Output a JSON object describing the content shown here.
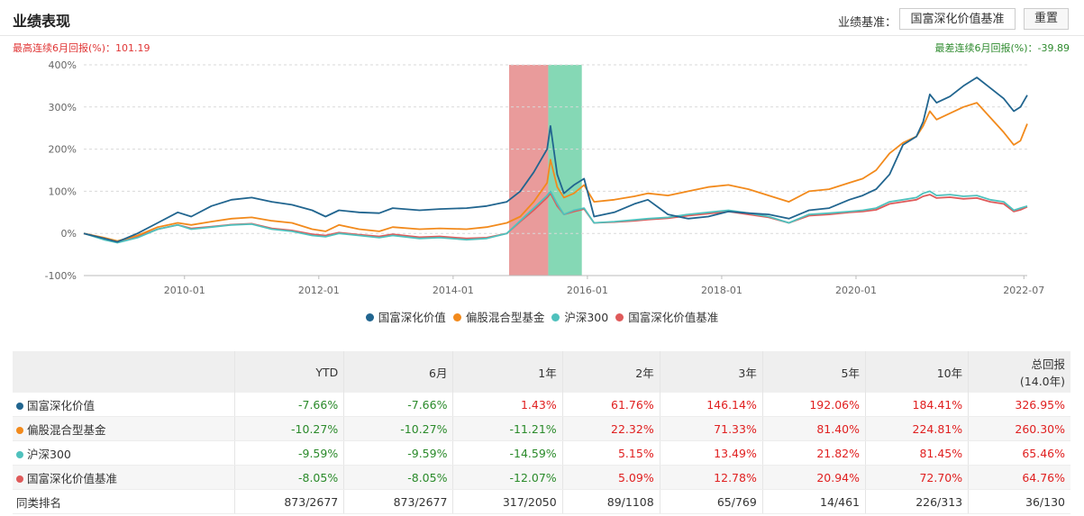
{
  "header": {
    "title": "业绩表现",
    "benchmark_label": "业绩基准：",
    "benchmark_value": "国富深化价值基准",
    "reset_label": "重置"
  },
  "stats": {
    "best": "最高连续6月回报(%)：101.19",
    "worst": "最差连续6月回报(%)：-39.89"
  },
  "chart_data": {
    "type": "line",
    "x_labels": [
      "2010-01",
      "2012-01",
      "2014-01",
      "2016-01",
      "2018-01",
      "2020-01",
      "2022-07"
    ],
    "x_range": [
      "2008-07",
      "2022-07"
    ],
    "y_labels": [
      "400%",
      "300%",
      "200%",
      "100%",
      "0%",
      "-100%"
    ],
    "ylim": [
      -100,
      400
    ],
    "grid": true,
    "legend_position": "bottom",
    "highlights": [
      {
        "from": "2014-11",
        "to": "2015-06",
        "color": "#e27a7a"
      },
      {
        "from": "2015-06",
        "to": "2015-12",
        "color": "#5ccb9c"
      }
    ],
    "series": [
      {
        "name": "国富深化价值",
        "color": "#21658f",
        "points": [
          [
            2008.5,
            0
          ],
          [
            2008.8,
            -12
          ],
          [
            2009.0,
            -20
          ],
          [
            2009.3,
            0
          ],
          [
            2009.6,
            25
          ],
          [
            2009.9,
            50
          ],
          [
            2010.1,
            40
          ],
          [
            2010.4,
            65
          ],
          [
            2010.7,
            80
          ],
          [
            2011.0,
            85
          ],
          [
            2011.3,
            75
          ],
          [
            2011.6,
            68
          ],
          [
            2011.9,
            55
          ],
          [
            2012.1,
            40
          ],
          [
            2012.3,
            55
          ],
          [
            2012.6,
            50
          ],
          [
            2012.9,
            48
          ],
          [
            2013.1,
            60
          ],
          [
            2013.5,
            55
          ],
          [
            2013.8,
            58
          ],
          [
            2014.2,
            60
          ],
          [
            2014.5,
            65
          ],
          [
            2014.8,
            75
          ],
          [
            2015.0,
            100
          ],
          [
            2015.2,
            145
          ],
          [
            2015.4,
            200
          ],
          [
            2015.45,
            255
          ],
          [
            2015.55,
            140
          ],
          [
            2015.65,
            95
          ],
          [
            2015.8,
            115
          ],
          [
            2015.95,
            130
          ],
          [
            2016.1,
            40
          ],
          [
            2016.4,
            50
          ],
          [
            2016.7,
            70
          ],
          [
            2016.9,
            80
          ],
          [
            2017.2,
            45
          ],
          [
            2017.5,
            35
          ],
          [
            2017.8,
            40
          ],
          [
            2018.1,
            52
          ],
          [
            2018.4,
            48
          ],
          [
            2018.7,
            45
          ],
          [
            2019.0,
            35
          ],
          [
            2019.3,
            55
          ],
          [
            2019.6,
            60
          ],
          [
            2019.9,
            80
          ],
          [
            2020.1,
            90
          ],
          [
            2020.3,
            105
          ],
          [
            2020.5,
            140
          ],
          [
            2020.7,
            210
          ],
          [
            2020.9,
            230
          ],
          [
            2021.0,
            265
          ],
          [
            2021.1,
            330
          ],
          [
            2021.2,
            310
          ],
          [
            2021.4,
            325
          ],
          [
            2021.6,
            350
          ],
          [
            2021.8,
            370
          ],
          [
            2022.0,
            345
          ],
          [
            2022.2,
            320
          ],
          [
            2022.35,
            290
          ],
          [
            2022.45,
            300
          ],
          [
            2022.55,
            328
          ]
        ]
      },
      {
        "name": "偏股混合型基金",
        "color": "#f28a1c",
        "points": [
          [
            2008.5,
            0
          ],
          [
            2008.8,
            -10
          ],
          [
            2009.0,
            -18
          ],
          [
            2009.3,
            -5
          ],
          [
            2009.6,
            15
          ],
          [
            2009.9,
            25
          ],
          [
            2010.1,
            20
          ],
          [
            2010.4,
            28
          ],
          [
            2010.7,
            35
          ],
          [
            2011.0,
            38
          ],
          [
            2011.3,
            30
          ],
          [
            2011.6,
            25
          ],
          [
            2011.9,
            10
          ],
          [
            2012.1,
            5
          ],
          [
            2012.3,
            20
          ],
          [
            2012.6,
            10
          ],
          [
            2012.9,
            5
          ],
          [
            2013.1,
            15
          ],
          [
            2013.5,
            10
          ],
          [
            2013.8,
            12
          ],
          [
            2014.2,
            10
          ],
          [
            2014.5,
            15
          ],
          [
            2014.8,
            25
          ],
          [
            2015.0,
            40
          ],
          [
            2015.2,
            75
          ],
          [
            2015.4,
            120
          ],
          [
            2015.45,
            175
          ],
          [
            2015.55,
            110
          ],
          [
            2015.65,
            85
          ],
          [
            2015.8,
            95
          ],
          [
            2015.95,
            115
          ],
          [
            2016.1,
            75
          ],
          [
            2016.4,
            80
          ],
          [
            2016.7,
            88
          ],
          [
            2016.9,
            95
          ],
          [
            2017.2,
            90
          ],
          [
            2017.5,
            100
          ],
          [
            2017.8,
            110
          ],
          [
            2018.1,
            115
          ],
          [
            2018.4,
            105
          ],
          [
            2018.7,
            90
          ],
          [
            2019.0,
            75
          ],
          [
            2019.3,
            100
          ],
          [
            2019.6,
            105
          ],
          [
            2019.9,
            120
          ],
          [
            2020.1,
            130
          ],
          [
            2020.3,
            150
          ],
          [
            2020.5,
            190
          ],
          [
            2020.7,
            215
          ],
          [
            2020.9,
            230
          ],
          [
            2021.0,
            255
          ],
          [
            2021.1,
            290
          ],
          [
            2021.2,
            270
          ],
          [
            2021.4,
            285
          ],
          [
            2021.6,
            300
          ],
          [
            2021.8,
            310
          ],
          [
            2022.0,
            275
          ],
          [
            2022.2,
            240
          ],
          [
            2022.35,
            210
          ],
          [
            2022.45,
            220
          ],
          [
            2022.55,
            260
          ]
        ]
      },
      {
        "name": "沪深300",
        "color": "#4fc1bd",
        "points": [
          [
            2008.5,
            0
          ],
          [
            2008.8,
            -15
          ],
          [
            2009.0,
            -22
          ],
          [
            2009.3,
            -10
          ],
          [
            2009.6,
            10
          ],
          [
            2009.9,
            20
          ],
          [
            2010.1,
            10
          ],
          [
            2010.4,
            15
          ],
          [
            2010.7,
            20
          ],
          [
            2011.0,
            22
          ],
          [
            2011.3,
            10
          ],
          [
            2011.6,
            5
          ],
          [
            2011.9,
            -5
          ],
          [
            2012.1,
            -8
          ],
          [
            2012.3,
            0
          ],
          [
            2012.6,
            -5
          ],
          [
            2012.9,
            -10
          ],
          [
            2013.1,
            -5
          ],
          [
            2013.5,
            -12
          ],
          [
            2013.8,
            -10
          ],
          [
            2014.2,
            -15
          ],
          [
            2014.5,
            -12
          ],
          [
            2014.8,
            0
          ],
          [
            2015.0,
            30
          ],
          [
            2015.2,
            60
          ],
          [
            2015.4,
            90
          ],
          [
            2015.45,
            100
          ],
          [
            2015.55,
            70
          ],
          [
            2015.65,
            45
          ],
          [
            2015.8,
            55
          ],
          [
            2015.95,
            60
          ],
          [
            2016.1,
            25
          ],
          [
            2016.4,
            28
          ],
          [
            2016.7,
            32
          ],
          [
            2016.9,
            35
          ],
          [
            2017.2,
            38
          ],
          [
            2017.5,
            45
          ],
          [
            2017.8,
            50
          ],
          [
            2018.1,
            55
          ],
          [
            2018.4,
            48
          ],
          [
            2018.7,
            40
          ],
          [
            2019.0,
            25
          ],
          [
            2019.3,
            45
          ],
          [
            2019.6,
            48
          ],
          [
            2019.9,
            52
          ],
          [
            2020.1,
            55
          ],
          [
            2020.3,
            60
          ],
          [
            2020.5,
            75
          ],
          [
            2020.7,
            80
          ],
          [
            2020.9,
            85
          ],
          [
            2021.0,
            95
          ],
          [
            2021.1,
            100
          ],
          [
            2021.2,
            90
          ],
          [
            2021.4,
            92
          ],
          [
            2021.6,
            88
          ],
          [
            2021.8,
            90
          ],
          [
            2022.0,
            80
          ],
          [
            2022.2,
            75
          ],
          [
            2022.35,
            55
          ],
          [
            2022.45,
            60
          ],
          [
            2022.55,
            65
          ]
        ]
      },
      {
        "name": "国富深化价值基准",
        "color": "#df5a5a",
        "points": [
          [
            2008.5,
            0
          ],
          [
            2008.8,
            -13
          ],
          [
            2009.0,
            -19
          ],
          [
            2009.3,
            -8
          ],
          [
            2009.6,
            10
          ],
          [
            2009.9,
            20
          ],
          [
            2010.1,
            12
          ],
          [
            2010.4,
            16
          ],
          [
            2010.7,
            21
          ],
          [
            2011.0,
            23
          ],
          [
            2011.3,
            12
          ],
          [
            2011.6,
            7
          ],
          [
            2011.9,
            -2
          ],
          [
            2012.1,
            -5
          ],
          [
            2012.3,
            2
          ],
          [
            2012.6,
            -3
          ],
          [
            2012.9,
            -7
          ],
          [
            2013.1,
            -2
          ],
          [
            2013.5,
            -9
          ],
          [
            2013.8,
            -7
          ],
          [
            2014.2,
            -12
          ],
          [
            2014.5,
            -10
          ],
          [
            2014.8,
            0
          ],
          [
            2015.0,
            28
          ],
          [
            2015.2,
            55
          ],
          [
            2015.4,
            85
          ],
          [
            2015.45,
            95
          ],
          [
            2015.55,
            65
          ],
          [
            2015.65,
            45
          ],
          [
            2015.8,
            52
          ],
          [
            2015.95,
            58
          ],
          [
            2016.1,
            25
          ],
          [
            2016.4,
            27
          ],
          [
            2016.7,
            30
          ],
          [
            2016.9,
            33
          ],
          [
            2017.2,
            36
          ],
          [
            2017.5,
            42
          ],
          [
            2017.8,
            47
          ],
          [
            2018.1,
            52
          ],
          [
            2018.4,
            45
          ],
          [
            2018.7,
            38
          ],
          [
            2019.0,
            25
          ],
          [
            2019.3,
            42
          ],
          [
            2019.6,
            45
          ],
          [
            2019.9,
            50
          ],
          [
            2020.1,
            52
          ],
          [
            2020.3,
            56
          ],
          [
            2020.5,
            70
          ],
          [
            2020.7,
            75
          ],
          [
            2020.9,
            80
          ],
          [
            2021.0,
            88
          ],
          [
            2021.1,
            92
          ],
          [
            2021.2,
            84
          ],
          [
            2021.4,
            86
          ],
          [
            2021.6,
            82
          ],
          [
            2021.8,
            84
          ],
          [
            2022.0,
            75
          ],
          [
            2022.2,
            70
          ],
          [
            2022.35,
            52
          ],
          [
            2022.45,
            56
          ],
          [
            2022.55,
            63
          ]
        ]
      }
    ]
  },
  "table": {
    "headers": [
      "YTD",
      "6月",
      "1年",
      "2年",
      "3年",
      "5年",
      "10年",
      "总回报",
      "(14.0年)"
    ],
    "rows": [
      {
        "name": "国富深化价值",
        "color": "#21658f",
        "values": [
          "-7.66%",
          "-7.66%",
          "1.43%",
          "61.76%",
          "146.14%",
          "192.06%",
          "184.41%",
          "326.95%"
        ]
      },
      {
        "name": "偏股混合型基金",
        "color": "#f28a1c",
        "values": [
          "-10.27%",
          "-10.27%",
          "-11.21%",
          "22.32%",
          "71.33%",
          "81.40%",
          "224.81%",
          "260.30%"
        ]
      },
      {
        "name": "沪深300",
        "color": "#4fc1bd",
        "values": [
          "-9.59%",
          "-9.59%",
          "-14.59%",
          "5.15%",
          "13.49%",
          "21.82%",
          "81.45%",
          "65.46%"
        ]
      },
      {
        "name": "国富深化价值基准",
        "color": "#df5a5a",
        "values": [
          "-8.05%",
          "-8.05%",
          "-12.07%",
          "5.09%",
          "12.78%",
          "20.94%",
          "72.70%",
          "64.76%"
        ]
      }
    ],
    "rank": {
      "name": "同类排名",
      "values": [
        "873/2677",
        "873/2677",
        "317/2050",
        "89/1108",
        "65/769",
        "14/461",
        "226/313",
        "36/130"
      ]
    }
  }
}
